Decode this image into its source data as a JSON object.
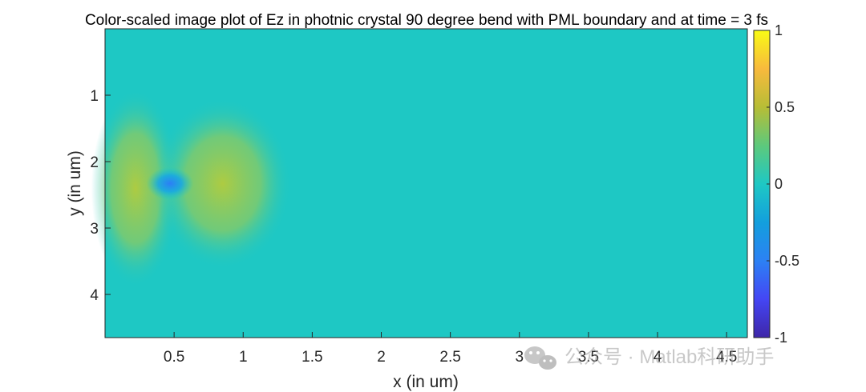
{
  "chart_data": {
    "type": "heatmap",
    "title": "Color-scaled image plot of Ez in photnic crystal 90 degree bend with PML boundary and at time = 3 fs",
    "xlabel": "x (in um)",
    "ylabel": "y (in um)",
    "xlim": [
      0,
      4.65
    ],
    "ylim": [
      0,
      4.65
    ],
    "y_reversed": true,
    "xticks": [
      0.5,
      1,
      1.5,
      2,
      2.5,
      3,
      3.5,
      4,
      4.5
    ],
    "xtick_labels": [
      "0.5",
      "1",
      "1.5",
      "2",
      "2.5",
      "3",
      "3.5",
      "4",
      "4.5"
    ],
    "yticks": [
      1,
      2,
      3,
      4
    ],
    "ytick_labels": [
      "1",
      "2",
      "3",
      "4"
    ],
    "colorbar": {
      "colormap": "parula",
      "limits": [
        -1,
        1
      ],
      "ticks": [
        1,
        0.5,
        0,
        -0.5,
        -1
      ],
      "tick_labels": [
        "1",
        "0.5",
        "0",
        "-0.5",
        "-1"
      ]
    },
    "background_value": 0,
    "features": [
      {
        "kind": "pulse-positive-left",
        "x": 0.22,
        "y": 2.4,
        "value": 0.38
      },
      {
        "kind": "pulse-positive-right",
        "x": 0.85,
        "y": 2.33,
        "value": 0.42
      },
      {
        "kind": "pulse-negative-core",
        "x": 0.47,
        "y": 2.33,
        "value": -0.5
      }
    ]
  },
  "watermark": {
    "text": "公众号 · Matlab科研助手",
    "icon": "wechat-icon"
  }
}
